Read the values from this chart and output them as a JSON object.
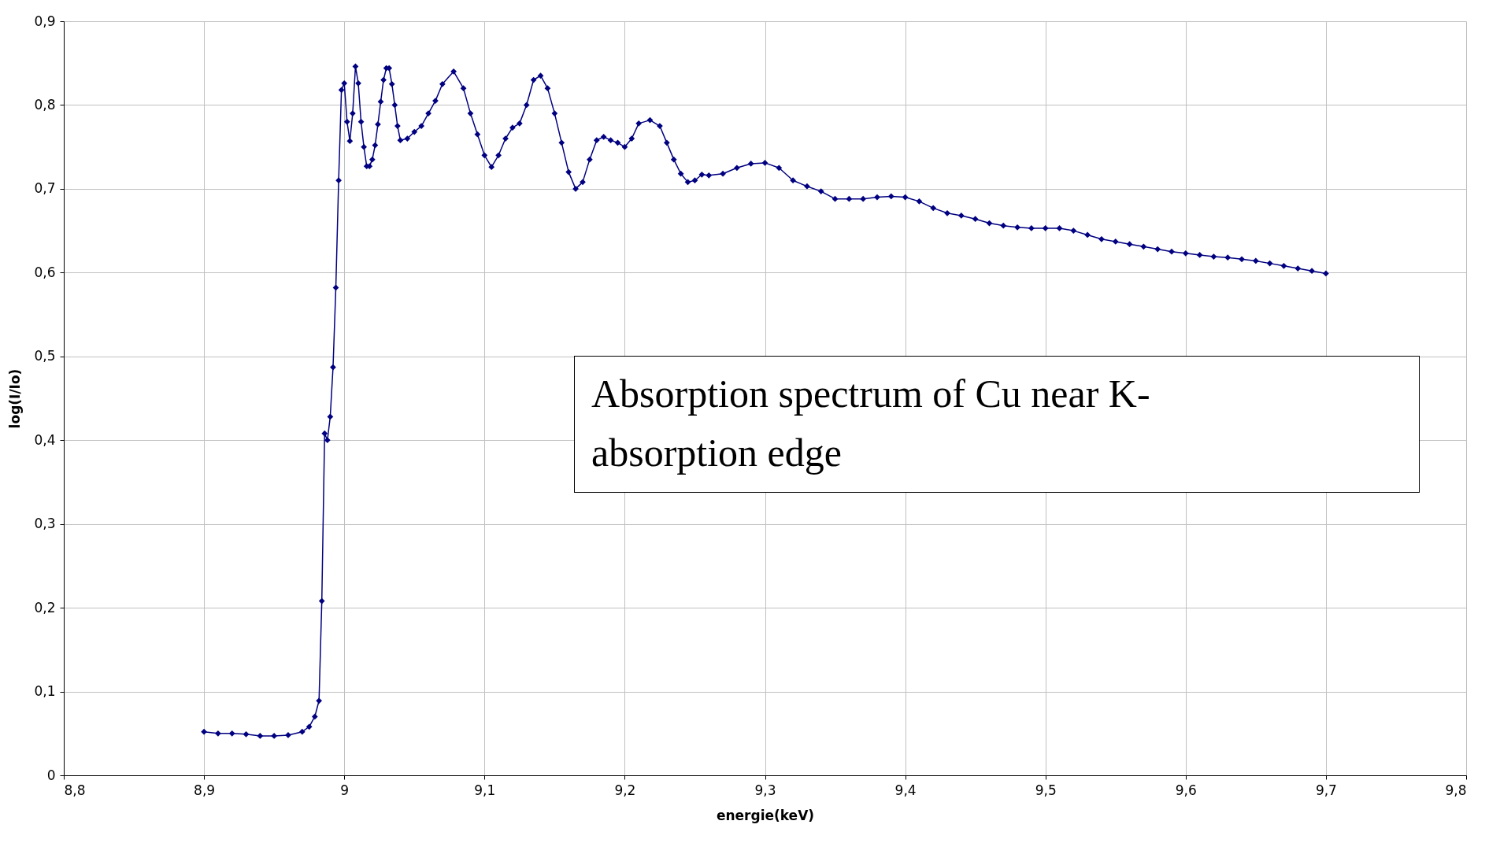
{
  "chart_data": {
    "type": "line",
    "xlabel": "energie(keV)",
    "ylabel": "log(I/Io)",
    "marker": "diamond",
    "grid": true,
    "annotations": [
      "Absorption spectrum of Cu near K-absorption edge"
    ],
    "xlim": [
      8.8,
      9.8
    ],
    "ylim": [
      0,
      0.9
    ],
    "xticks": [
      {
        "value": 8.8,
        "label": "8,8"
      },
      {
        "value": 8.9,
        "label": "8,9"
      },
      {
        "value": 9,
        "label": "9"
      },
      {
        "value": 9.1,
        "label": "9,1"
      },
      {
        "value": 9.2,
        "label": "9,2"
      },
      {
        "value": 9.3,
        "label": "9,3"
      },
      {
        "value": 9.4,
        "label": "9,4"
      },
      {
        "value": 9.5,
        "label": "9,5"
      },
      {
        "value": 9.6,
        "label": "9,6"
      },
      {
        "value": 9.7,
        "label": "9,7"
      },
      {
        "value": 9.8,
        "label": "9,8"
      }
    ],
    "yticks": [
      0,
      {
        "value": 0.1,
        "label": "0,1"
      },
      {
        "value": 0.2,
        "label": "0,2"
      },
      {
        "value": 0.3,
        "label": "0,3"
      },
      {
        "value": 0.4,
        "label": "0,4"
      },
      {
        "value": 0.5,
        "label": "0,5"
      },
      {
        "value": 0.6,
        "label": "0,6"
      },
      {
        "value": 0.7,
        "label": "0,7"
      },
      {
        "value": 0.8,
        "label": "0,8"
      },
      {
        "value": 0.9,
        "label": "0,9"
      }
    ],
    "series": [
      {
        "color": "#000080",
        "x": [
          8.9,
          8.91,
          8.92,
          8.93,
          8.94,
          8.95,
          8.96,
          8.97,
          8.975,
          8.979,
          8.982,
          8.984,
          8.986,
          8.988,
          8.99,
          8.992,
          8.994,
          8.996,
          8.998,
          9.0,
          9.002,
          9.004,
          9.006,
          9.008,
          9.01,
          9.012,
          9.014,
          9.016,
          9.018,
          9.02,
          9.022,
          9.024,
          9.026,
          9.028,
          9.03,
          9.032,
          9.034,
          9.036,
          9.038,
          9.04,
          9.045,
          9.05,
          9.055,
          9.06,
          9.065,
          9.07,
          9.078,
          9.085,
          9.09,
          9.095,
          9.1,
          9.105,
          9.11,
          9.115,
          9.12,
          9.125,
          9.13,
          9.135,
          9.14,
          9.145,
          9.15,
          9.155,
          9.16,
          9.165,
          9.17,
          9.175,
          9.18,
          9.185,
          9.19,
          9.195,
          9.2,
          9.205,
          9.21,
          9.218,
          9.225,
          9.23,
          9.235,
          9.24,
          9.245,
          9.25,
          9.255,
          9.26,
          9.27,
          9.28,
          9.29,
          9.3,
          9.31,
          9.32,
          9.33,
          9.34,
          9.35,
          9.36,
          9.37,
          9.38,
          9.39,
          9.4,
          9.41,
          9.42,
          9.43,
          9.44,
          9.45,
          9.46,
          9.47,
          9.48,
          9.49,
          9.5,
          9.51,
          9.52,
          9.53,
          9.54,
          9.55,
          9.56,
          9.57,
          9.58,
          9.59,
          9.6,
          9.61,
          9.62,
          9.63,
          9.64,
          9.65,
          9.66,
          9.67,
          9.68,
          9.69,
          9.7
        ],
        "values": [
          0.052,
          0.05,
          0.05,
          0.049,
          0.047,
          0.047,
          0.048,
          0.052,
          0.058,
          0.07,
          0.089,
          0.208,
          0.408,
          0.4,
          0.428,
          0.487,
          0.582,
          0.71,
          0.818,
          0.826,
          0.78,
          0.757,
          0.79,
          0.846,
          0.826,
          0.78,
          0.75,
          0.727,
          0.727,
          0.735,
          0.752,
          0.777,
          0.804,
          0.83,
          0.844,
          0.844,
          0.825,
          0.8,
          0.775,
          0.758,
          0.76,
          0.768,
          0.775,
          0.79,
          0.805,
          0.825,
          0.84,
          0.82,
          0.79,
          0.765,
          0.74,
          0.726,
          0.74,
          0.76,
          0.773,
          0.778,
          0.8,
          0.83,
          0.835,
          0.82,
          0.79,
          0.755,
          0.72,
          0.7,
          0.708,
          0.735,
          0.758,
          0.762,
          0.758,
          0.755,
          0.75,
          0.76,
          0.778,
          0.782,
          0.775,
          0.755,
          0.735,
          0.718,
          0.708,
          0.71,
          0.717,
          0.716,
          0.718,
          0.725,
          0.73,
          0.731,
          0.725,
          0.71,
          0.703,
          0.697,
          0.688,
          0.688,
          0.688,
          0.69,
          0.691,
          0.69,
          0.685,
          0.677,
          0.671,
          0.668,
          0.664,
          0.659,
          0.656,
          0.654,
          0.653,
          0.653,
          0.653,
          0.65,
          0.645,
          0.64,
          0.637,
          0.634,
          0.631,
          0.628,
          0.625,
          0.623,
          0.621,
          0.619,
          0.618,
          0.616,
          0.614,
          0.611,
          0.608,
          0.605,
          0.602,
          0.599
        ]
      }
    ]
  }
}
